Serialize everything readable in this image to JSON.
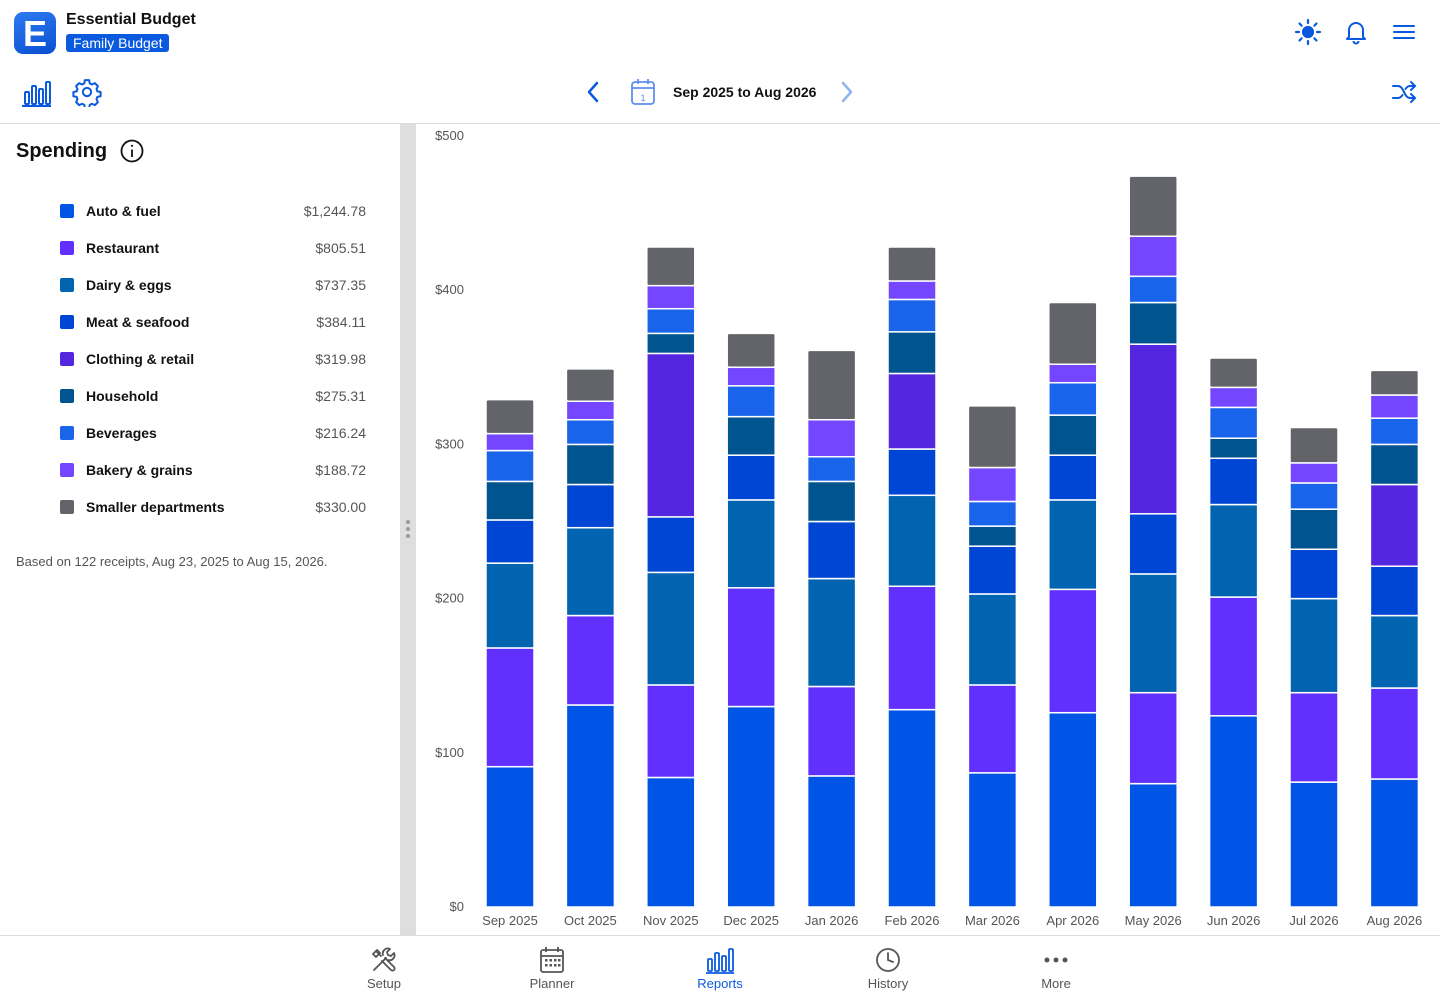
{
  "header": {
    "app_title": "Essential Budget",
    "budget_name": "Family Budget",
    "logo_letter": "E"
  },
  "toolbar": {
    "date_range": "Sep 2025 to Aug 2026",
    "calendar_day": "1"
  },
  "spending": {
    "title": "Spending",
    "items": [
      {
        "label": "Auto & fuel",
        "value": "$1,244.78",
        "color": "#0055e6"
      },
      {
        "label": "Restaurant",
        "value": "$805.51",
        "color": "#6130ff"
      },
      {
        "label": "Dairy & eggs",
        "value": "$737.35",
        "color": "#0064b0"
      },
      {
        "label": "Meat & seafood",
        "value": "$384.11",
        "color": "#0046d4"
      },
      {
        "label": "Clothing & retail",
        "value": "$319.98",
        "color": "#5526e0"
      },
      {
        "label": "Household",
        "value": "$275.31",
        "color": "#00548f"
      },
      {
        "label": "Beverages",
        "value": "$216.24",
        "color": "#1a64ec"
      },
      {
        "label": "Bakery & grains",
        "value": "$188.72",
        "color": "#7446ff"
      },
      {
        "label": "Smaller departments",
        "value": "$330.00",
        "color": "#626469"
      }
    ],
    "note": "Based on 122 receipts, Aug 23, 2025 to Aug 15, 2026."
  },
  "chart_data": {
    "type": "bar",
    "stacked": true,
    "categories": [
      "Sep 2025",
      "Oct 2025",
      "Nov 2025",
      "Dec 2025",
      "Jan 2026",
      "Feb 2026",
      "Mar 2026",
      "Apr 2026",
      "May 2026",
      "Jun 2026",
      "Jul 2026",
      "Aug 2026"
    ],
    "yticks": [
      "$0",
      "$100",
      "$200",
      "$300",
      "$400",
      "$500"
    ],
    "ylim": [
      0,
      500
    ],
    "series": [
      {
        "name": "Auto & fuel",
        "values": [
          91,
          131,
          84,
          130,
          85,
          128,
          87,
          126,
          80,
          124,
          81,
          83
        ]
      },
      {
        "name": "Restaurant",
        "values": [
          77,
          58,
          60,
          77,
          58,
          80,
          57,
          80,
          59,
          77,
          58,
          59
        ]
      },
      {
        "name": "Dairy & eggs",
        "values": [
          55,
          57,
          73,
          57,
          70,
          59,
          59,
          58,
          77,
          60,
          61,
          47
        ]
      },
      {
        "name": "Meat & seafood",
        "values": [
          28,
          28,
          36,
          29,
          37,
          30,
          31,
          29,
          39,
          30,
          32,
          32
        ]
      },
      {
        "name": "Clothing & retail",
        "values": [
          0,
          0,
          106,
          0,
          0,
          49,
          0,
          0,
          110,
          0,
          0,
          53
        ]
      },
      {
        "name": "Household",
        "values": [
          25,
          26,
          13,
          25,
          26,
          27,
          13,
          26,
          27,
          13,
          26,
          26
        ]
      },
      {
        "name": "Beverages",
        "values": [
          20,
          16,
          16,
          20,
          16,
          21,
          16,
          21,
          17,
          20,
          17,
          17
        ]
      },
      {
        "name": "Bakery & grains",
        "values": [
          11,
          12,
          15,
          12,
          24,
          12,
          22,
          12,
          26,
          13,
          13,
          15
        ]
      },
      {
        "name": "Smaller departments",
        "values": [
          22,
          21,
          25,
          22,
          45,
          22,
          40,
          40,
          39,
          19,
          23,
          16
        ]
      }
    ]
  },
  "nav": {
    "items": [
      {
        "label": "Setup"
      },
      {
        "label": "Planner"
      },
      {
        "label": "Reports"
      },
      {
        "label": "History"
      },
      {
        "label": "More"
      }
    ],
    "active": "Reports"
  },
  "colors": {
    "accent": "#0a5ae0",
    "chevron_disabled": "#8fb3f0"
  }
}
